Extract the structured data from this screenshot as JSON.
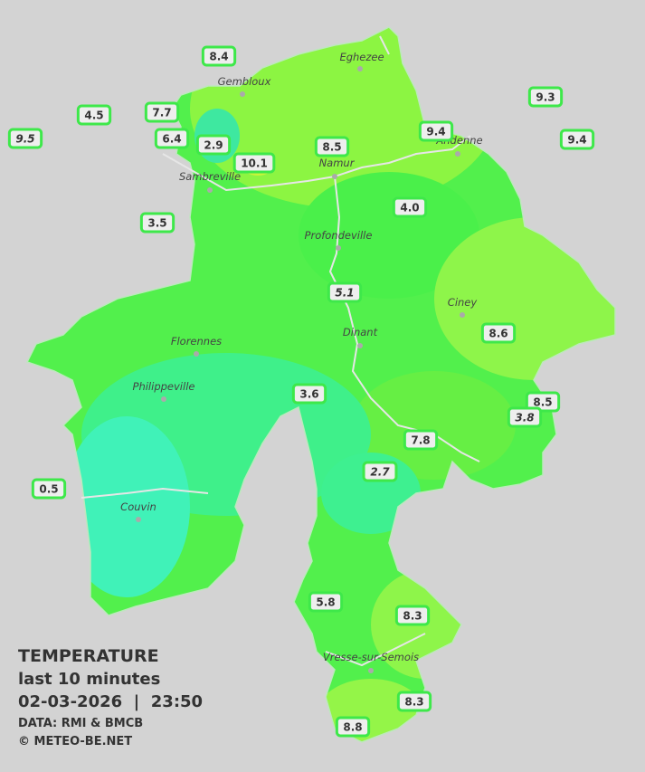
{
  "title": "TEMPERATURE",
  "subtitle": "last 10 minutes",
  "timestamp": "02-03-2026  |  23:50",
  "source": "DATA: RMI & BMCB",
  "copyright": "© METEO-BE.NET",
  "towns": [
    {
      "label": "Eghezee"
    },
    {
      "label": "Gembloux"
    },
    {
      "label": "Andenne"
    },
    {
      "label": "Namur"
    },
    {
      "label": "Sambreville"
    },
    {
      "label": "Profondeville"
    },
    {
      "label": "Ciney"
    },
    {
      "label": "Dinant"
    },
    {
      "label": "Florennes"
    },
    {
      "label": "Philippeville"
    },
    {
      "label": "Couvin"
    },
    {
      "label": "Vresse-sur-Semois"
    }
  ],
  "stations": [
    {
      "value": "8.4"
    },
    {
      "value": "4.5"
    },
    {
      "value": "7.7"
    },
    {
      "value": "9.5"
    },
    {
      "value": "6.4"
    },
    {
      "value": "2.9"
    },
    {
      "value": "10.1"
    },
    {
      "value": "8.5"
    },
    {
      "value": "9.4"
    },
    {
      "value": "9.3"
    },
    {
      "value": "9.4"
    },
    {
      "value": "3.5"
    },
    {
      "value": "4.0"
    },
    {
      "value": "5.1"
    },
    {
      "value": "8.6"
    },
    {
      "value": "3.6"
    },
    {
      "value": "8.5"
    },
    {
      "value": "3.8"
    },
    {
      "value": "7.8"
    },
    {
      "value": "2.7"
    },
    {
      "value": "0.5"
    },
    {
      "value": "5.8"
    },
    {
      "value": "8.3"
    },
    {
      "value": "8.3"
    },
    {
      "value": "8.8"
    }
  ]
}
